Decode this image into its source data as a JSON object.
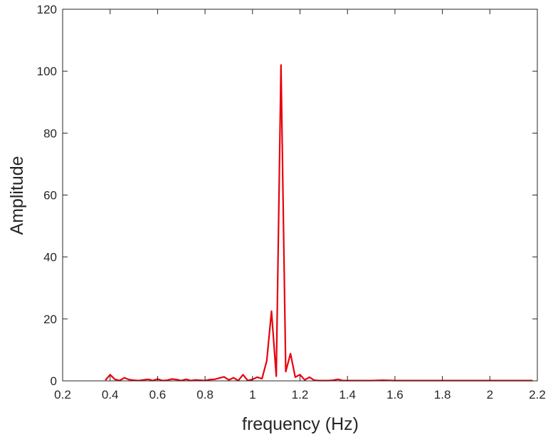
{
  "chart_data": {
    "type": "line",
    "title": "",
    "xlabel": "frequency (Hz)",
    "ylabel": "Amplitude",
    "xlim": [
      0.2,
      2.2
    ],
    "ylim": [
      0,
      120
    ],
    "xticks": [
      0.2,
      0.4,
      0.6,
      0.8,
      1,
      1.2,
      1.4,
      1.6,
      1.8,
      2,
      2.2
    ],
    "xtick_labels": [
      "0.2",
      "0.4",
      "0.6",
      "0.8",
      "1",
      "1.2",
      "1.4",
      "1.6",
      "1.8",
      "2",
      "2.2"
    ],
    "yticks": [
      0,
      20,
      40,
      60,
      80,
      100,
      120
    ],
    "ytick_labels": [
      "0",
      "20",
      "40",
      "60",
      "80",
      "100",
      "120"
    ],
    "grid": false,
    "line_color": "#e8000b",
    "series": [
      {
        "x": [
          0.38,
          0.4,
          0.42,
          0.44,
          0.46,
          0.48,
          0.5,
          0.52,
          0.54,
          0.56,
          0.58,
          0.6,
          0.62,
          0.64,
          0.66,
          0.68,
          0.7,
          0.72,
          0.74,
          0.76,
          0.78,
          0.8,
          0.82,
          0.84,
          0.86,
          0.88,
          0.9,
          0.92,
          0.94,
          0.96,
          0.98,
          1.0,
          1.02,
          1.04,
          1.06,
          1.08,
          1.1,
          1.12,
          1.14,
          1.16,
          1.18,
          1.2,
          1.22,
          1.24,
          1.26,
          1.28,
          1.3,
          1.32,
          1.34,
          1.36,
          1.38,
          1.4,
          1.45,
          1.5,
          1.55,
          1.6,
          1.65,
          1.7,
          1.75,
          1.8,
          1.85,
          1.9,
          1.95,
          2.0,
          2.05,
          2.1,
          2.15,
          2.18
        ],
        "values": [
          0.2,
          2.0,
          0.5,
          0.1,
          1.0,
          0.4,
          0.2,
          0.1,
          0.3,
          0.5,
          0.1,
          0.6,
          0.1,
          0.2,
          0.6,
          0.4,
          0.1,
          0.5,
          0.1,
          0.3,
          0.2,
          0.1,
          0.4,
          0.5,
          0.9,
          1.3,
          0.3,
          1.0,
          0.1,
          2.0,
          0.1,
          0.5,
          1.2,
          0.7,
          6.5,
          22.5,
          1.5,
          102,
          3.0,
          8.8,
          1.2,
          2.0,
          0.3,
          1.2,
          0.2,
          0.1,
          0.1,
          0.1,
          0.2,
          0.5,
          0.1,
          0.1,
          0.1,
          0.1,
          0.2,
          0.1,
          0.1,
          0.1,
          0.1,
          0.1,
          0.1,
          0.1,
          0.1,
          0.1,
          0.1,
          0.1,
          0.1,
          0.1
        ]
      }
    ]
  }
}
